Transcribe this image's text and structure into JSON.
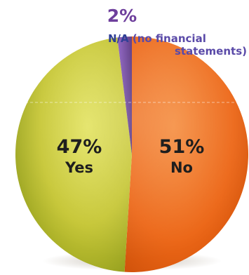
{
  "chart_data": {
    "type": "pie",
    "title": "",
    "slices": [
      {
        "label": "No",
        "value": 51,
        "value_label": "51%",
        "color": "#ee6a1a"
      },
      {
        "label": "Yes",
        "value": 47,
        "value_label": "47%",
        "color": "#c2c22e"
      },
      {
        "label": "N/A",
        "note": "(no financial statements)",
        "value": 2,
        "value_label": "2%",
        "color": "#6e3f9c"
      }
    ],
    "label_colors": {
      "inside": "#1e1e1e",
      "na_percent": "#6e3f9c",
      "na_label": "#2f3f96",
      "na_note": "#5a4aa8"
    },
    "legend": "none"
  }
}
